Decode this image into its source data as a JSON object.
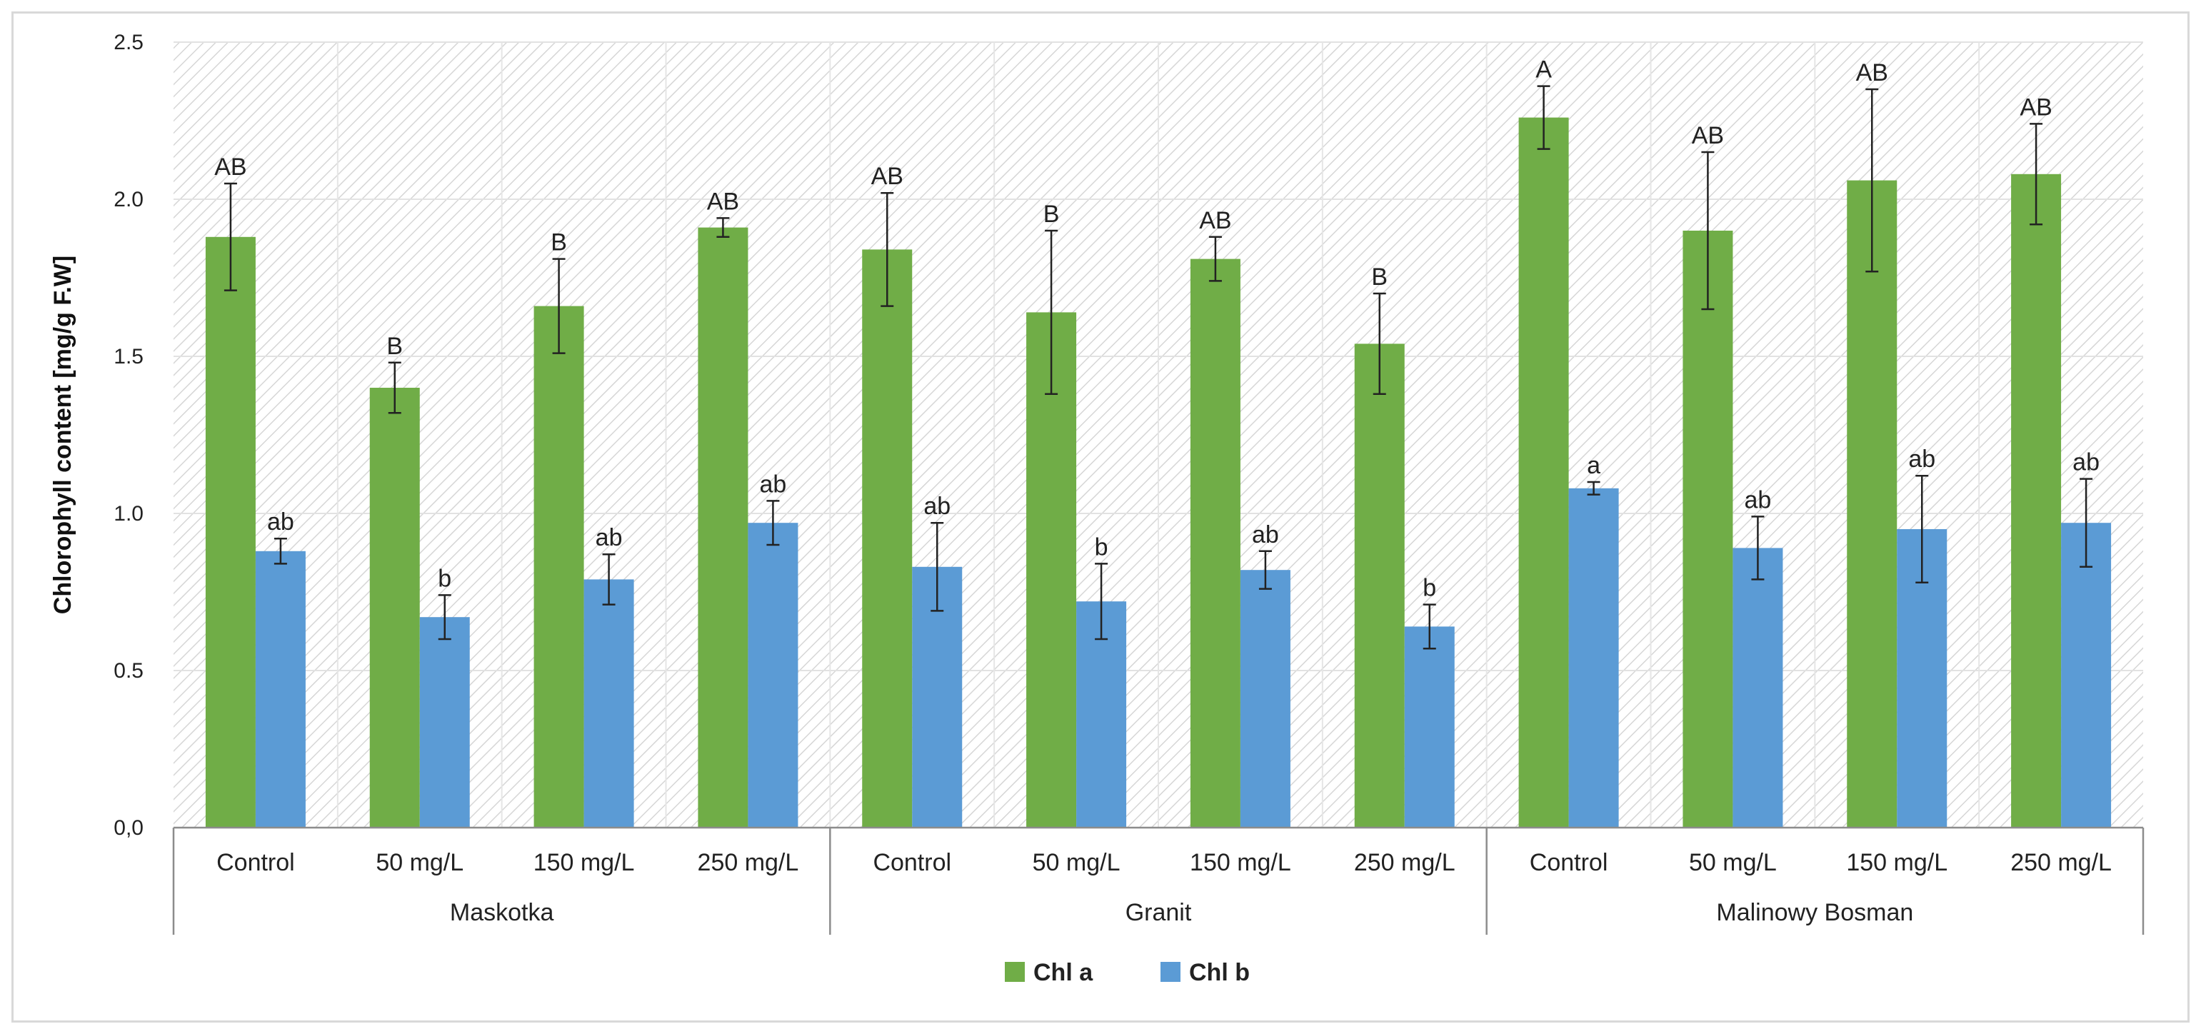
{
  "chart_data": {
    "type": "bar",
    "title": "",
    "xlabel": "",
    "ylabel": "Chlorophyll content [mg/g F.W]",
    "ylim": [
      0,
      2.5
    ],
    "yticks": [
      0,
      0.5,
      1.0,
      1.5,
      2.0,
      2.5
    ],
    "ytick_labels": [
      "0,0",
      "0.5",
      "1.0",
      "1.5",
      "2.0",
      "2.5"
    ],
    "grid": true,
    "legend_position": "bottom-center",
    "groups": [
      {
        "name": "Maskotka",
        "categories": [
          "Control",
          "50 mg/L",
          "150 mg/L",
          "250 mg/L"
        ]
      },
      {
        "name": "Granit",
        "categories": [
          "Control",
          "50 mg/L",
          "150 mg/L",
          "250 mg/L"
        ]
      },
      {
        "name": "Malinowy Bosman",
        "categories": [
          "Control",
          "50 mg/L",
          "150 mg/L",
          "250 mg/L"
        ]
      }
    ],
    "series": [
      {
        "name": "Chl a",
        "color": "#70ad47",
        "values": [
          1.88,
          1.4,
          1.66,
          1.91,
          1.84,
          1.64,
          1.81,
          1.54,
          2.26,
          1.9,
          2.06,
          2.08
        ],
        "errors": [
          0.17,
          0.08,
          0.15,
          0.03,
          0.18,
          0.26,
          0.07,
          0.16,
          0.1,
          0.25,
          0.29,
          0.16
        ],
        "labels": [
          "AB",
          "B",
          "B",
          "AB",
          "AB",
          "B",
          "AB",
          "B",
          "A",
          "AB",
          "AB",
          "AB"
        ]
      },
      {
        "name": "Chl b",
        "color": "#5b9bd5",
        "values": [
          0.88,
          0.67,
          0.79,
          0.97,
          0.83,
          0.72,
          0.82,
          0.64,
          1.08,
          0.89,
          0.95,
          0.97
        ],
        "errors": [
          0.04,
          0.07,
          0.08,
          0.07,
          0.14,
          0.12,
          0.06,
          0.07,
          0.02,
          0.1,
          0.17,
          0.14
        ],
        "labels": [
          "ab",
          "b",
          "ab",
          "ab",
          "ab",
          "b",
          "ab",
          "b",
          "a",
          "ab",
          "ab",
          "ab"
        ]
      }
    ]
  }
}
